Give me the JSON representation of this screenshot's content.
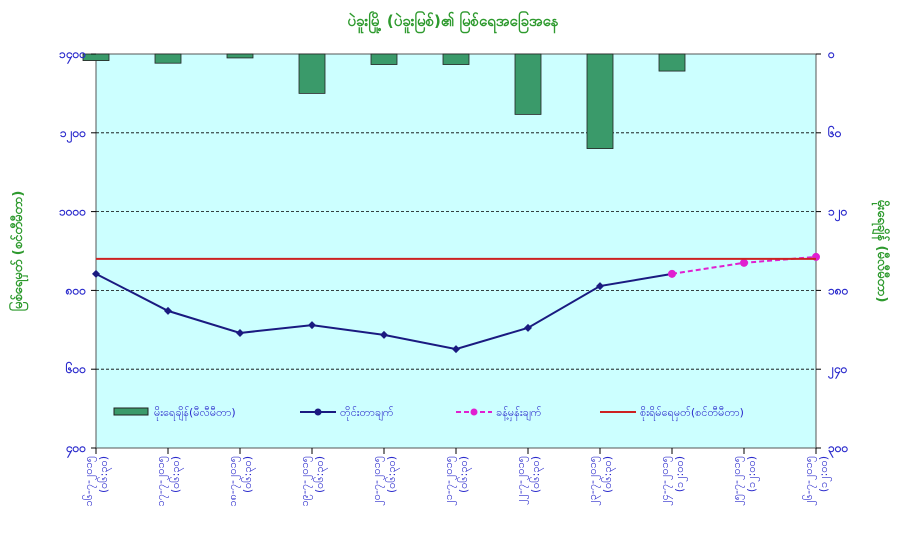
{
  "chart_data": {
    "type": "bar+line",
    "title": "ပဲခူးမြို့ (ပဲခူးမြစ်)၏ မြစ်ရေအခြေအနေ",
    "ylabel": "မြစ်ရေမှတ် (စင်တီမီတာ)",
    "y2label": "မိုးရေချိန် (မီလီမီတာ)",
    "ylim": [
      400,
      1400
    ],
    "yticks": [
      "၄၀၀",
      "၆၀၀",
      "၈၀၀",
      "၁၀၀၀",
      "၁၂၀၀",
      "၁၄၀၀"
    ],
    "yticks_values": [
      400,
      600,
      800,
      1000,
      1200,
      1400
    ],
    "y2lim": [
      300,
      0
    ],
    "y2ticks": [
      "၀",
      "၆၀",
      "၁၂၀",
      "၁၈၀",
      "၂၄၀",
      "၃၀၀"
    ],
    "y2ticks_values": [
      0,
      60,
      120,
      180,
      240,
      300
    ],
    "categories": [
      [
        "၁၆-၇-၂၀၁၅",
        "(၀၆:၃၀)"
      ],
      [
        "၁၇-၇-၂၀၁၅",
        "(၀၆:၃၀)"
      ],
      [
        "၁၈-၇-၂၀၁၅",
        "(၀၆:၃၀)"
      ],
      [
        "၁၉-၇-၂၀၁၅",
        "(၀၆:၃၀)"
      ],
      [
        "၂၀-၇-၂၀၁၅",
        "(၀၆:၃၀)"
      ],
      [
        "၂၁-၇-၂၀၁၅",
        "(၀၆:၃၀)"
      ],
      [
        "၂၂-၇-၂၀၁၅",
        "(၀၆:၃၀)"
      ],
      [
        "၂၃-၇-၂၀၁၅",
        "(၀၆:၃၀)"
      ],
      [
        "၂၄-၇-၂၀၁၅",
        "(၁၂:၀၀)"
      ],
      [
        "၂၅-၇-၂၀၁၅",
        "(၁၂:၀၀)"
      ],
      [
        "၂၆-၇-၂၀၁၅",
        "(၁၂:၀၀)"
      ]
    ],
    "series": [
      {
        "name": "မိုးရေချိန်(မီလီမီတာ)",
        "type": "bar",
        "axis": "right",
        "color": "#3a9a6a",
        "values": [
          5,
          7,
          3,
          30,
          8,
          8,
          46,
          72,
          13,
          null,
          null
        ]
      },
      {
        "name": "တိုင်းတာချက်",
        "type": "line",
        "axis": "left",
        "color": "#1a1a80",
        "values": [
          842,
          748,
          692,
          712,
          687,
          651,
          705,
          811,
          842,
          null,
          null
        ]
      },
      {
        "name": "ခန့်မှန်းချက်",
        "type": "line-dashed",
        "axis": "left",
        "color": "#e020d0",
        "values": [
          null,
          null,
          null,
          null,
          null,
          null,
          null,
          null,
          842,
          870,
          885
        ]
      },
      {
        "name": "စိုးရိမ်ရေမှတ်(စင်တီမီတာ)",
        "type": "hline",
        "axis": "left",
        "color": "#cc2222",
        "value": 880
      }
    ],
    "grid": true,
    "legend": "bottom-inside"
  }
}
